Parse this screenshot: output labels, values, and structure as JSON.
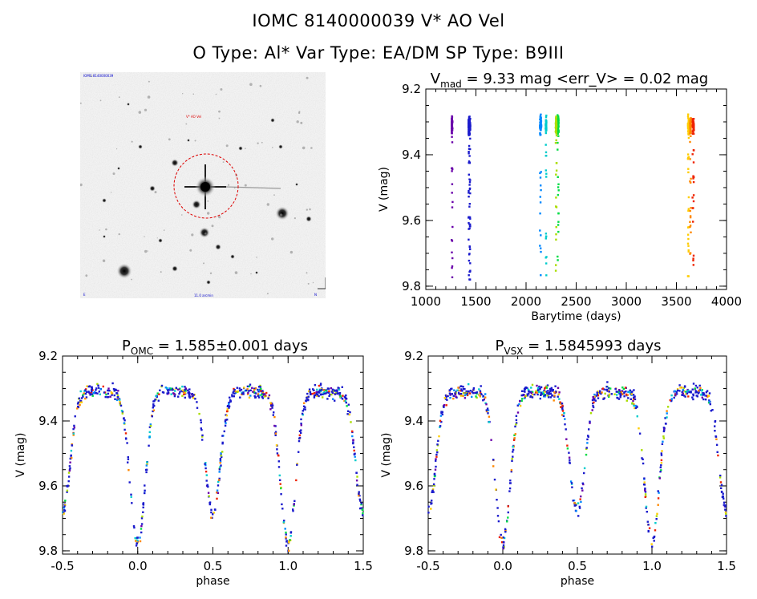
{
  "header": {
    "title_line1": "IOMC 8140000039    V* AO Vel",
    "title_line2": "O Type: Al*   Var Type: EA/DM   SP Type: B9III"
  },
  "finder": {
    "label_top_left": "IOMC 8140000039",
    "label_center": "V* AO Vel",
    "label_bottom_center": "11.0 arcmin",
    "label_bottom_left": "E",
    "label_bottom_right": "N"
  },
  "colors": {
    "palette": [
      "#6a00aa",
      "#1a1acc",
      "#0088ff",
      "#00cccc",
      "#00dd44",
      "#aadd00",
      "#ffcc00",
      "#ff8800",
      "#ee2200"
    ],
    "circle": "#dd0000"
  },
  "chart_data": [
    {
      "id": "lc",
      "type": "scatter",
      "title_main": "V",
      "title_sub": "mad",
      "title_rest": " = 9.33 mag <err_V> = 0.02 mag",
      "xlabel": "Barytime (days)",
      "ylabel": "V (mag)",
      "xlim": [
        1000,
        4000
      ],
      "ylim": [
        9.81,
        9.2
      ],
      "xticks": [
        "1000",
        "1500",
        "2000",
        "2500",
        "3000",
        "3500",
        "4000"
      ],
      "yticks": [
        "9.2",
        "9.4",
        "9.6",
        "9.8"
      ],
      "groups": [
        {
          "x": 1262,
          "spread": 10,
          "color_index": 0
        },
        {
          "x": 1435,
          "spread": 18,
          "color_index": 1
        },
        {
          "x": 2145,
          "spread": 14,
          "color_index": 2
        },
        {
          "x": 2200,
          "spread": 8,
          "color_index": 3
        },
        {
          "x": 2320,
          "spread": 12,
          "color_index": 4
        },
        {
          "x": 2300,
          "spread": 10,
          "color_index": 5
        },
        {
          "x": 3620,
          "spread": 10,
          "color_index": 6
        },
        {
          "x": 3640,
          "spread": 10,
          "color_index": 7
        },
        {
          "x": 3668,
          "spread": 14,
          "color_index": 8
        }
      ]
    },
    {
      "id": "ph1",
      "type": "scatter",
      "title_main": "P",
      "title_sub": "OMC",
      "title_rest": " = 1.585±0.001 days",
      "xlabel": "phase",
      "ylabel": "V (mag)",
      "xlim": [
        -0.5,
        1.5
      ],
      "ylim": [
        9.81,
        9.2
      ],
      "xticks": [
        "-0.5",
        "0.0",
        "0.5",
        "1.0",
        "1.5"
      ],
      "yticks": [
        "9.2",
        "9.4",
        "9.6",
        "9.8"
      ],
      "period_days": 1.585,
      "primary_min": {
        "phase": 0.0,
        "mag": 9.78
      },
      "secondary_min": {
        "phase": 0.5,
        "mag": 9.68
      },
      "out_of_eclipse_mag": 9.31
    },
    {
      "id": "ph2",
      "type": "scatter",
      "title_main": "P",
      "title_sub": "VSX",
      "title_rest": " = 1.5845993 days",
      "xlabel": "phase",
      "ylabel": "V (mag)",
      "xlim": [
        -0.5,
        1.5
      ],
      "ylim": [
        9.81,
        9.2
      ],
      "xticks": [
        "-0.5",
        "0.0",
        "0.5",
        "1.0",
        "1.5"
      ],
      "yticks": [
        "9.2",
        "9.4",
        "9.6",
        "9.8"
      ],
      "period_days": 1.5845993,
      "primary_min": {
        "phase": 0.0,
        "mag": 9.78
      },
      "secondary_min": {
        "phase": 0.5,
        "mag": 9.68
      },
      "out_of_eclipse_mag": 9.31
    }
  ]
}
